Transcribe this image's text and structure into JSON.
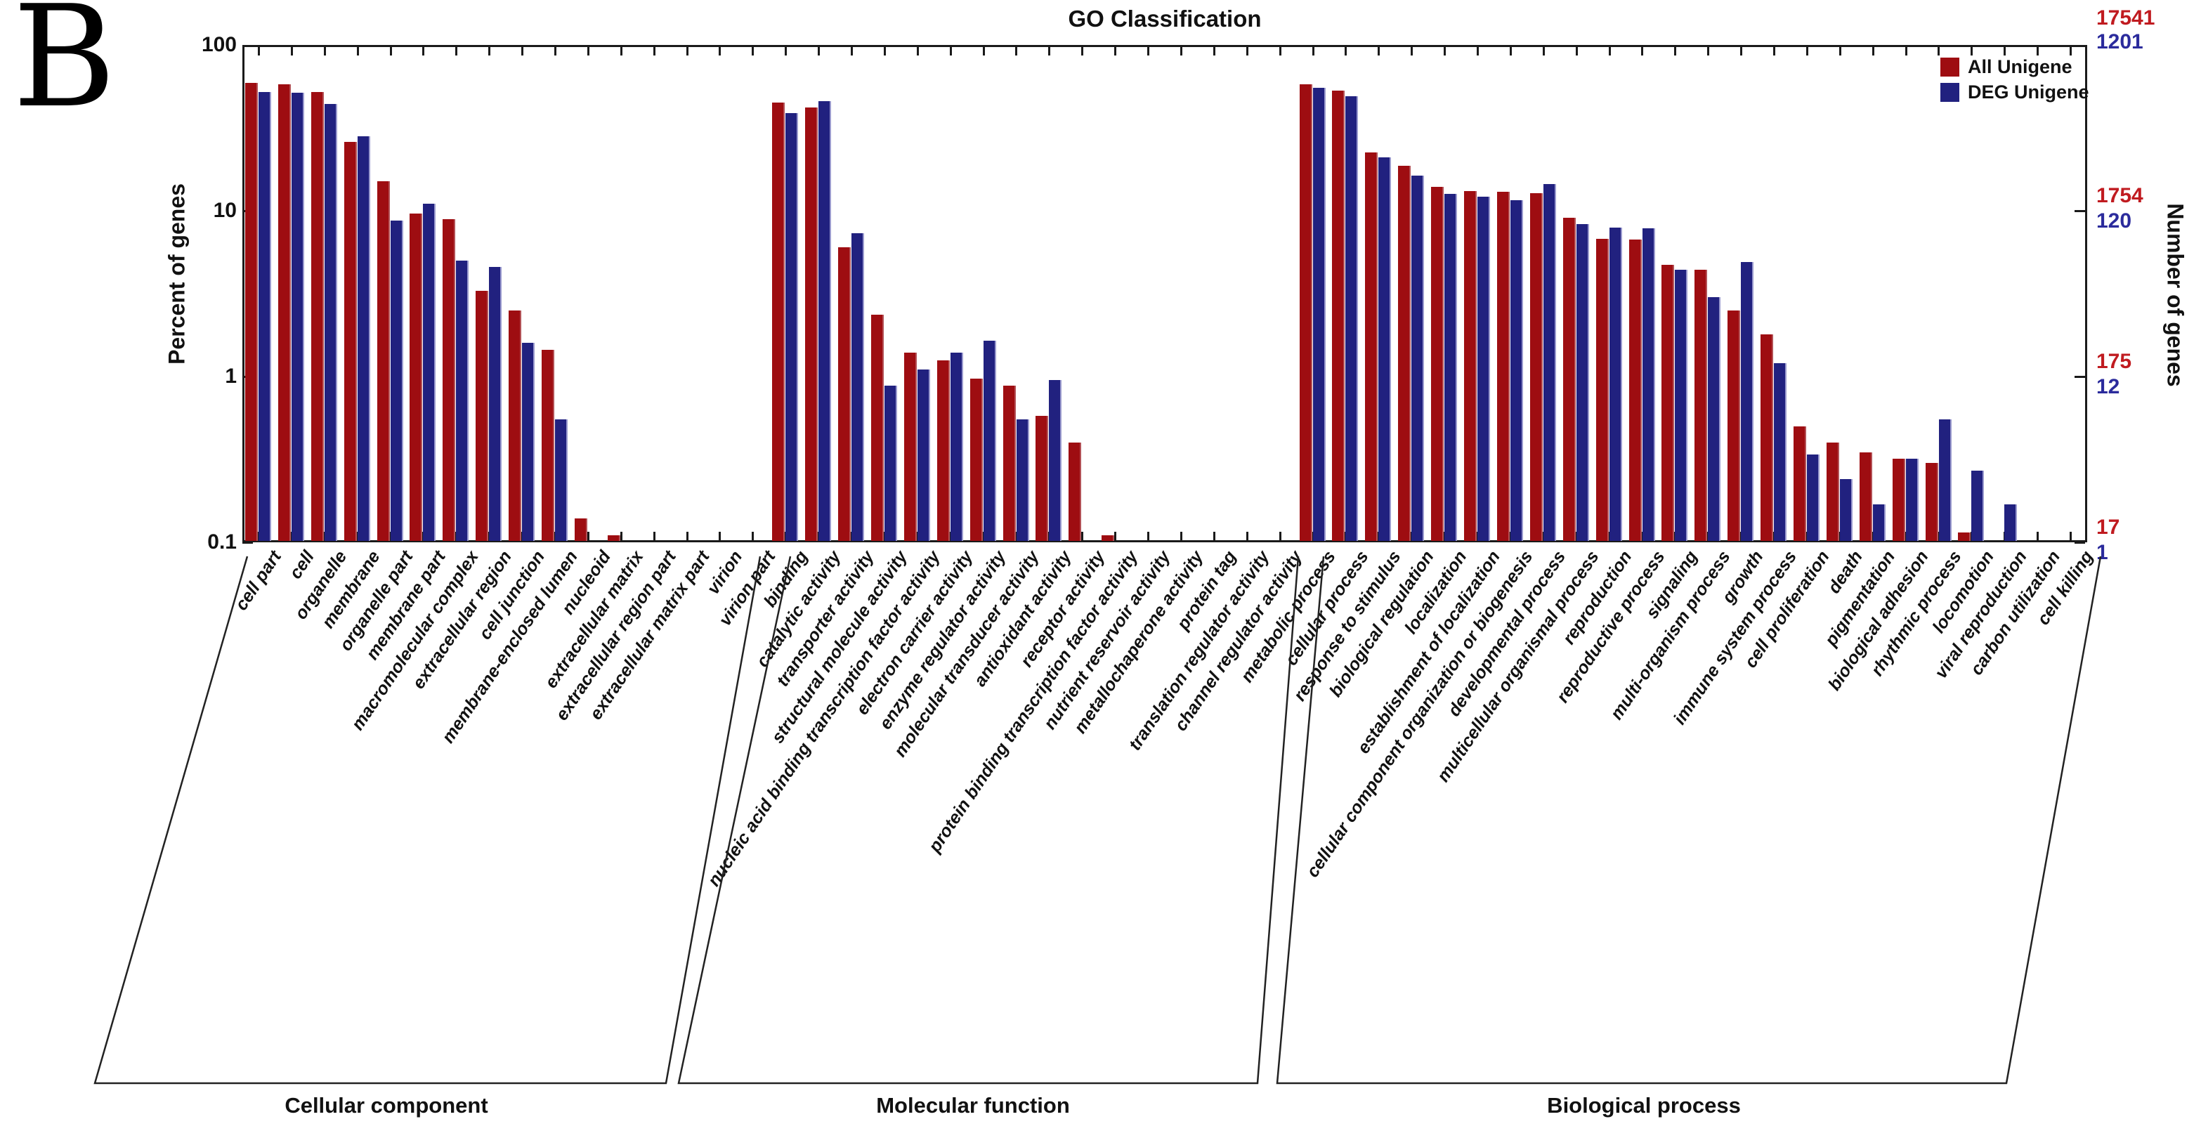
{
  "panel_label": "B",
  "chart_data": {
    "type": "bar",
    "title": "GO Classification",
    "y_axis_left": {
      "label": "Percent of genes",
      "scale": "log",
      "range": [
        0.1,
        100
      ],
      "ticks": [
        "100",
        "10",
        "1",
        "0.1"
      ]
    },
    "y_axis_right": {
      "label": "Number of genes",
      "tick_pairs": [
        {
          "all": "17541",
          "deg": "1201"
        },
        {
          "all": "1754",
          "deg": "120"
        },
        {
          "all": "175",
          "deg": "12"
        },
        {
          "all": "17",
          "deg": "1"
        }
      ]
    },
    "legend": {
      "position": "top-right",
      "entries": [
        {
          "label": "All Unigene",
          "color": "#9e0d11"
        },
        {
          "label": "DEG Unigene",
          "color": "#21217f"
        }
      ]
    },
    "groups": [
      {
        "name": "Cellular component",
        "categories": [
          "cell part",
          "cell",
          "organelle",
          "membrane",
          "organelle part",
          "membrane part",
          "macromolecular complex",
          "extracellular region",
          "cell junction",
          "membrane-enclosed lumen",
          "nucleoid",
          "extracellular matrix",
          "extracellular region part",
          "extracellular matrix part",
          "virion",
          "virion part"
        ],
        "all_unigene_pct": [
          59,
          58,
          52,
          26,
          15,
          9.6,
          8.9,
          3.3,
          2.5,
          1.45,
          0.14,
          0.11,
          null,
          null,
          null,
          null
        ],
        "deg_unigene_pct": [
          52,
          51.5,
          44,
          28,
          8.7,
          11,
          5.0,
          4.6,
          1.6,
          0.55,
          null,
          null,
          null,
          null,
          null,
          null
        ]
      },
      {
        "name": "Molecular function",
        "categories": [
          "binding",
          "catalytic activity",
          "transporter activity",
          "structural molecule activity",
          "nucleic acid binding transcription factor activity",
          "electron carrier activity",
          "enzyme regulator activity",
          "molecular transducer activity",
          "antioxidant activity",
          "receptor activity",
          "protein binding transcription factor activity",
          "nutrient reservoir activity",
          "metallochaperone activity",
          "protein tag",
          "translation regulator activity",
          "channel regulator activity"
        ],
        "all_unigene_pct": [
          45,
          42,
          6.0,
          2.35,
          1.4,
          1.25,
          0.97,
          0.88,
          0.58,
          0.4,
          0.11,
          null,
          null,
          null,
          null,
          null
        ],
        "deg_unigene_pct": [
          39,
          46,
          7.3,
          0.88,
          1.1,
          1.4,
          1.65,
          0.55,
          0.95,
          null,
          null,
          null,
          null,
          null,
          null,
          null
        ]
      },
      {
        "name": "Biological process",
        "categories": [
          "metabolic process",
          "cellular process",
          "response to stimulus",
          "biological regulation",
          "localization",
          "establishment of localization",
          "cellular component organization or biogenesis",
          "developmental process",
          "multicellular organismal process",
          "reproduction",
          "reproductive process",
          "signaling",
          "multi-organism process",
          "growth",
          "immune system process",
          "cell proliferation",
          "death",
          "pigmentation",
          "biological adhesion",
          "rhythmic process",
          "locomotion",
          "viral reproduction",
          "carbon utilization",
          "cell killing"
        ],
        "all_unigene_pct": [
          58,
          53,
          22.5,
          18.7,
          13.9,
          13.2,
          13.0,
          12.8,
          9.1,
          6.8,
          6.7,
          4.7,
          4.4,
          2.5,
          1.8,
          0.5,
          0.4,
          0.35,
          0.32,
          0.3,
          0.115,
          null,
          null,
          null
        ],
        "deg_unigene_pct": [
          55,
          49,
          21,
          16.3,
          12.6,
          12.2,
          11.6,
          14.5,
          8.3,
          7.9,
          7.85,
          4.4,
          3.0,
          4.9,
          1.2,
          0.34,
          0.24,
          0.17,
          0.32,
          0.55,
          0.27,
          0.17,
          null,
          null
        ]
      }
    ]
  }
}
